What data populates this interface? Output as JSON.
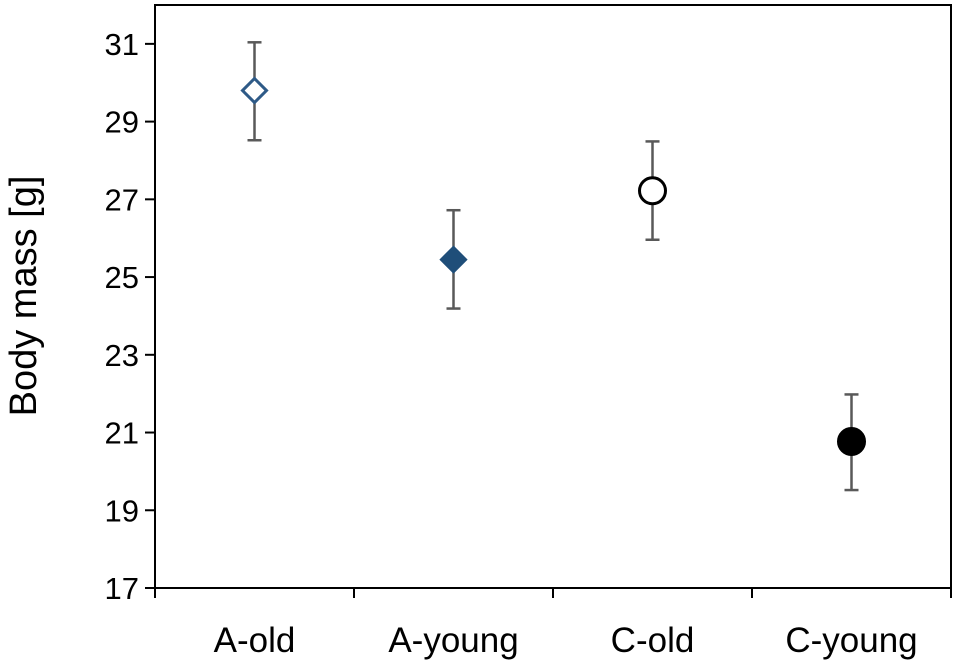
{
  "chart_data": {
    "type": "scatter",
    "title": "",
    "xlabel": "",
    "ylabel": "Body mass [g]",
    "ylim": [
      17,
      32
    ],
    "yticks": [
      17,
      19,
      21,
      23,
      25,
      27,
      29,
      31
    ],
    "categories": [
      "A-old",
      "A-young",
      "C-old",
      "C-young"
    ],
    "values": [
      29.8,
      25.45,
      27.22,
      20.77
    ],
    "error_low": [
      28.52,
      24.19,
      25.96,
      19.52
    ],
    "error_high": [
      31.04,
      26.72,
      28.49,
      21.98
    ],
    "markers": [
      "diamond-open",
      "diamond-filled",
      "circle-open",
      "circle-filled"
    ],
    "marker_colors": [
      "#2e5a87",
      "#1f4e79",
      "#000000",
      "#000000"
    ],
    "errorbar_color": "#595959",
    "grid": false,
    "legend": "none"
  }
}
